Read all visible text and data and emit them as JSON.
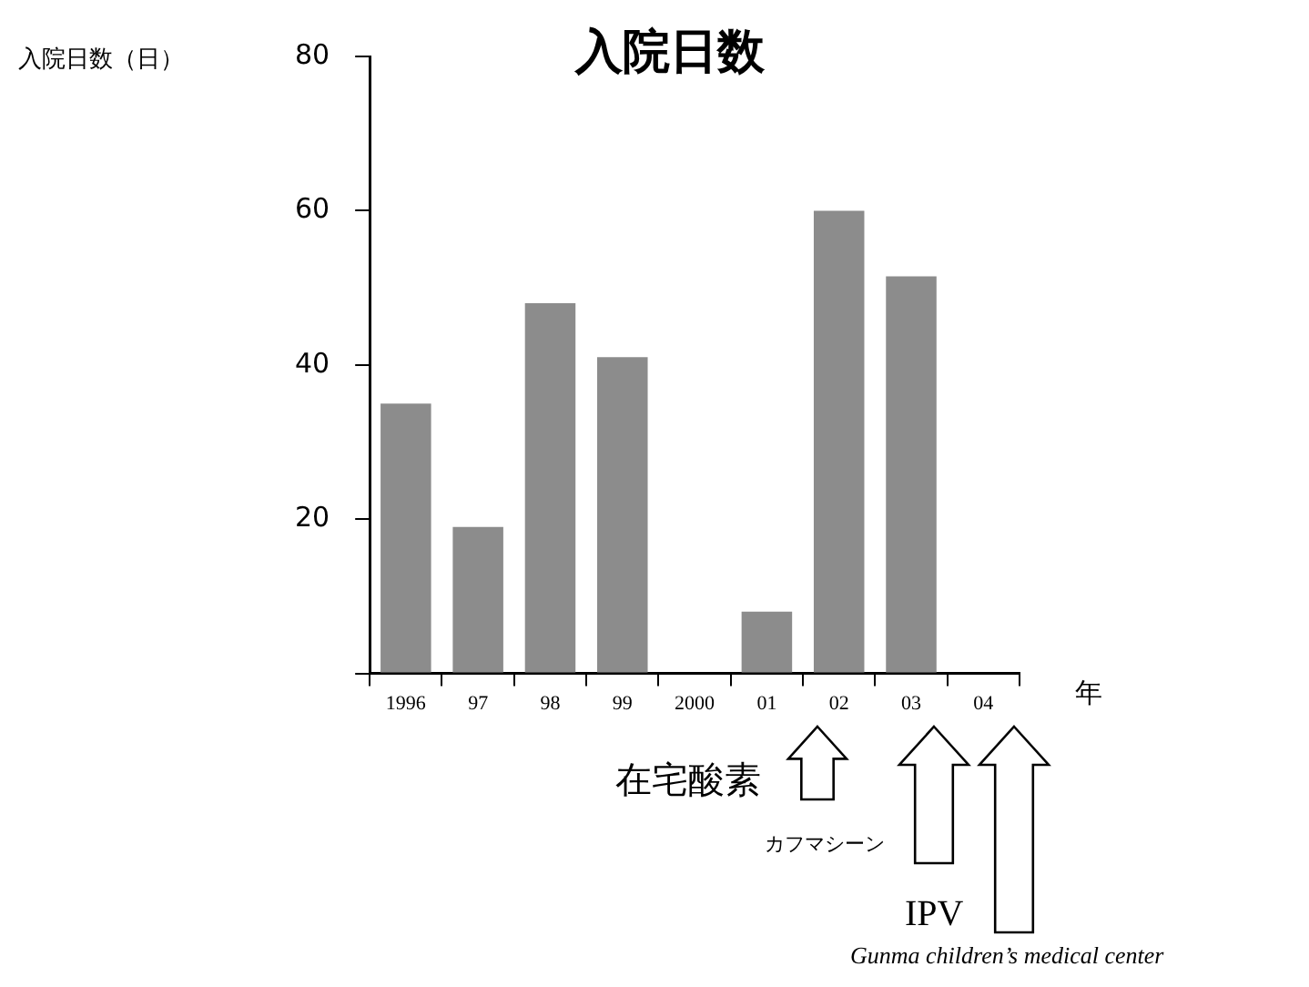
{
  "chart_data": {
    "type": "bar",
    "title": "入院日数",
    "ylabel": "入院日数（日）",
    "xlabel": "年",
    "categories": [
      "1996",
      "97",
      "98",
      "99",
      "2000",
      "01",
      "02",
      "03",
      "04"
    ],
    "values": [
      35,
      19,
      48,
      41,
      0,
      8,
      60,
      51.5,
      0
    ],
    "color": "#8c8c8c",
    "ylim": [
      0,
      80
    ],
    "yticks": [
      {
        "value": 0,
        "label": null
      },
      20,
      40,
      60,
      80
    ],
    "grid": false,
    "legend": false,
    "annotations": [
      "在宅酸素",
      "カフマシーン",
      "IPV",
      "Gunma children’s medical center"
    ]
  }
}
